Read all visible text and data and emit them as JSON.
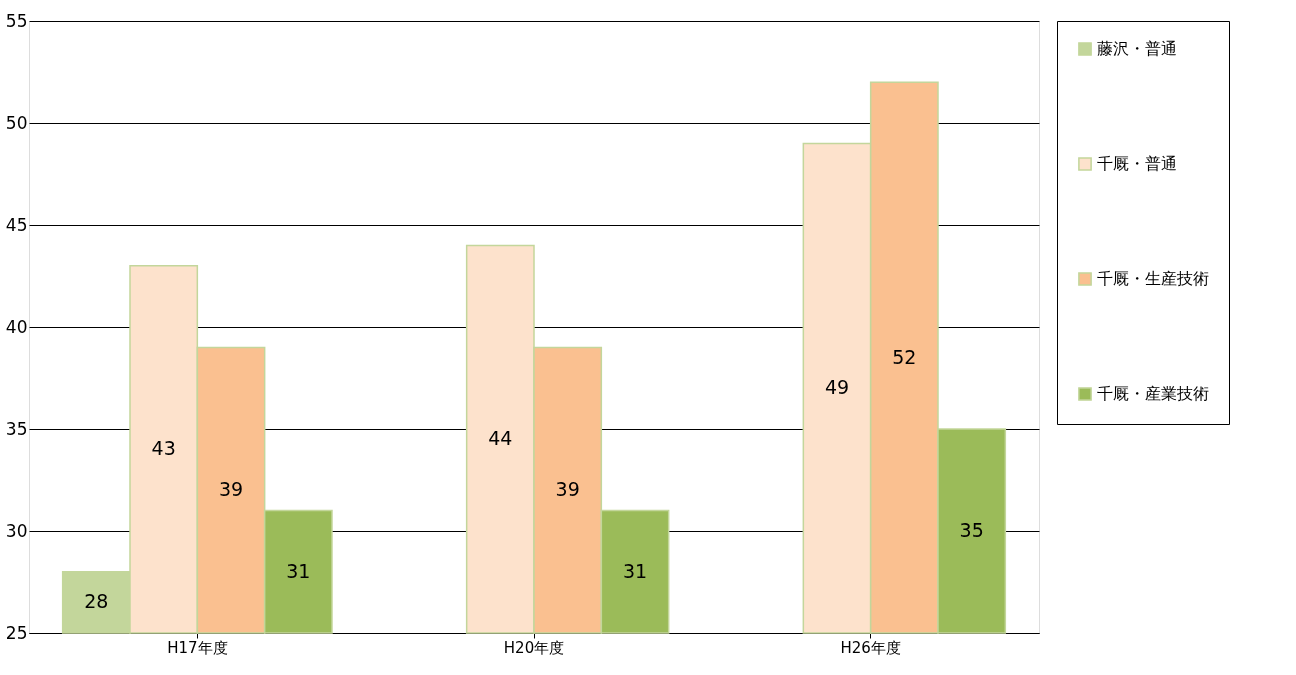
{
  "chart_data": {
    "type": "bar",
    "categories": [
      "H17年度",
      "H20年度",
      "H26年度"
    ],
    "series": [
      {
        "name": "藤沢・普通",
        "color": "#c3d69b",
        "values": [
          28,
          null,
          null
        ]
      },
      {
        "name": "千厩・普通",
        "color": "#fde2cc",
        "values": [
          43,
          44,
          49
        ]
      },
      {
        "name": "千厩・生産技術",
        "color": "#fac090",
        "values": [
          39,
          39,
          52
        ]
      },
      {
        "name": "千厩・産業技術",
        "color": "#9bbb59",
        "values": [
          31,
          31,
          35
        ]
      }
    ],
    "ylim": [
      25,
      55
    ],
    "yticks": [
      25,
      30,
      35,
      40,
      45,
      50,
      55
    ],
    "grid": "y",
    "legend": "right",
    "data_labels": true
  }
}
